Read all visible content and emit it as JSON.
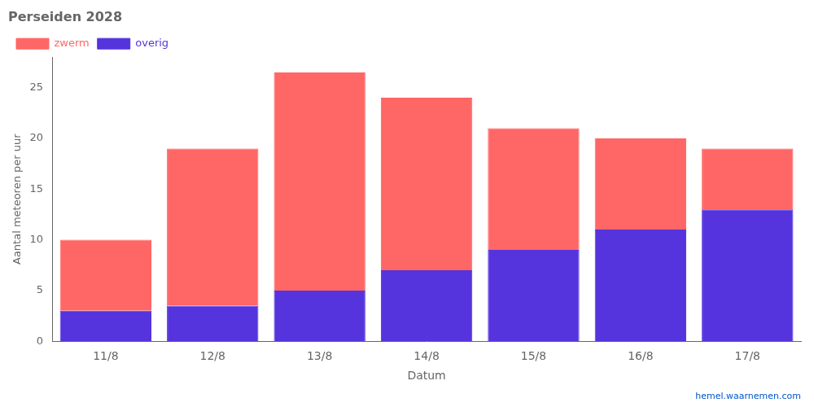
{
  "chart_data": {
    "type": "bar",
    "title": "Perseiden 2028",
    "xlabel": "Datum",
    "ylabel": "Aantal meteoren per uur",
    "categories": [
      "11/8",
      "12/8",
      "13/8",
      "14/8",
      "15/8",
      "16/8",
      "17/8"
    ],
    "series": [
      {
        "name": "overig",
        "color": "#5533DD",
        "values": [
          3,
          3.5,
          5,
          7,
          9,
          11,
          13
        ]
      },
      {
        "name": "zwerm",
        "color": "#FF6666",
        "values": [
          7,
          15.5,
          21.5,
          17,
          12,
          9,
          6
        ]
      }
    ],
    "stacked": true,
    "ylim": [
      0,
      28
    ],
    "yticks": [
      0,
      5,
      10,
      15,
      20,
      25
    ],
    "grid": false,
    "legend": "upper left",
    "annotations": [
      {
        "text": "hemel.waarnemen.com",
        "color": "#0055CC"
      }
    ]
  }
}
